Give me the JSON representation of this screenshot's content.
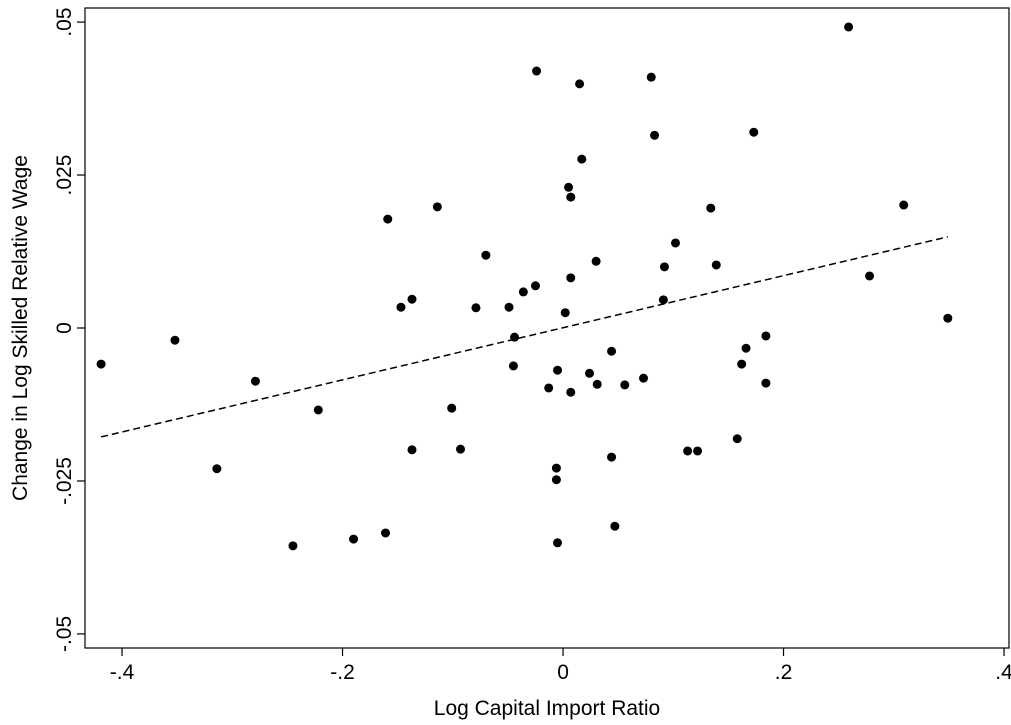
{
  "chart_data": {
    "type": "scatter",
    "xlabel": "Log Capital Import Ratio",
    "ylabel": "Change in Log Skilled Relative Wage",
    "x": [
      -0.419,
      -0.352,
      -0.314,
      -0.279,
      -0.245,
      -0.222,
      -0.19,
      -0.161,
      -0.159,
      -0.147,
      -0.137,
      -0.137,
      -0.114,
      -0.101,
      -0.093,
      -0.079,
      -0.07,
      -0.049,
      -0.045,
      -0.044,
      -0.036,
      -0.025,
      -0.024,
      -0.013,
      -0.006,
      -0.006,
      -0.005,
      -0.005,
      0.002,
      0.005,
      0.007,
      0.007,
      0.007,
      0.015,
      0.017,
      0.024,
      0.03,
      0.031,
      0.044,
      0.044,
      0.047,
      0.056,
      0.073,
      0.092,
      0.08,
      0.083,
      0.091,
      0.102,
      0.113,
      0.122,
      0.134,
      0.139,
      0.158,
      0.162,
      0.166,
      0.173,
      0.184,
      0.184,
      0.259,
      0.278,
      0.309,
      0.349
    ],
    "y": [
      -0.0059,
      -0.002,
      -0.023,
      -0.0087,
      -0.0356,
      -0.0134,
      -0.0345,
      -0.0335,
      0.0178,
      0.0034,
      0.0047,
      -0.0199,
      0.0198,
      -0.0131,
      -0.0198,
      0.0033,
      0.0119,
      0.0034,
      -0.0062,
      -0.0015,
      0.0059,
      0.0069,
      0.042,
      -0.0098,
      -0.0229,
      -0.0248,
      -0.0351,
      -0.0069,
      0.0025,
      0.023,
      0.0214,
      0.0082,
      -0.0105,
      0.0399,
      0.0276,
      -0.0074,
      0.0109,
      -0.0092,
      -0.0038,
      -0.0211,
      -0.0324,
      -0.0093,
      -0.0082,
      0.01,
      0.041,
      0.0315,
      0.0046,
      0.0139,
      -0.0201,
      -0.0201,
      0.0196,
      0.0103,
      -0.0181,
      -0.0059,
      -0.0033,
      0.032,
      -0.0013,
      -0.009,
      0.0492,
      0.0085,
      0.0201,
      0.0016
    ],
    "color": "#000000",
    "fit_line": {
      "x": [
        -0.419,
        0.349
      ],
      "y": [
        -0.0178,
        0.0149
      ]
    },
    "xlim": [
      -0.4336,
      0.4045
    ],
    "ylim": [
      -0.0523,
      0.0523
    ],
    "xticks": [
      {
        "value": -0.4,
        "label": "-.4"
      },
      {
        "value": -0.2,
        "label": "-.2"
      },
      0,
      {
        "value": 0.2,
        "label": ".2"
      },
      {
        "value": 0.4,
        "label": ".4"
      }
    ],
    "yticks": [
      {
        "value": -0.05,
        "label": "-.05"
      },
      {
        "value": -0.025,
        "label": "-.025"
      },
      0,
      {
        "value": 0.025,
        "label": ".025"
      },
      {
        "value": 0.05,
        "label": ".05"
      }
    ]
  }
}
